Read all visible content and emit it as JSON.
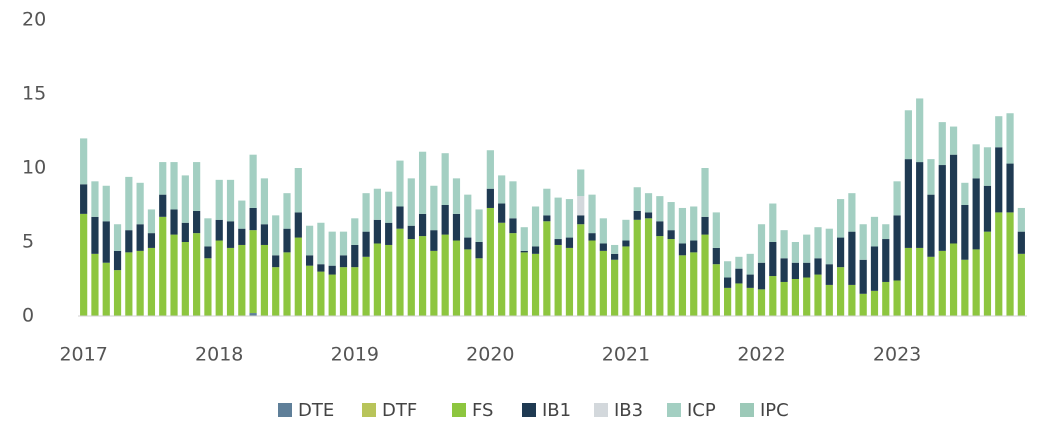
{
  "chart_data": {
    "type": "stacked_bar",
    "categories": [
      "2017",
      null,
      null,
      null,
      null,
      null,
      null,
      null,
      null,
      null,
      null,
      null,
      "2018",
      null,
      null,
      null,
      null,
      null,
      null,
      null,
      null,
      null,
      null,
      null,
      "2019",
      null,
      null,
      null,
      null,
      null,
      null,
      null,
      null,
      null,
      null,
      null,
      "2020",
      null,
      null,
      null,
      null,
      null,
      null,
      null,
      null,
      null,
      null,
      null,
      "2021",
      null,
      null,
      null,
      null,
      null,
      null,
      null,
      null,
      null,
      null,
      null,
      "2022",
      null,
      null,
      null,
      null,
      null,
      null,
      null,
      null,
      null,
      null,
      null,
      "2023",
      null,
      null,
      null,
      null,
      null,
      null,
      null,
      null,
      null,
      null,
      null
    ],
    "series": [
      {
        "name": "DTE",
        "color": "#5f7f99",
        "values": [
          0,
          0,
          0,
          0,
          0,
          0,
          0,
          0,
          0,
          0,
          0,
          0,
          0,
          0,
          0,
          0.2,
          0,
          0,
          0,
          0,
          0,
          0,
          0,
          0,
          0,
          0,
          0,
          0,
          0,
          0,
          0,
          0,
          0,
          0,
          0,
          0,
          0,
          0,
          0,
          0,
          0,
          0,
          0,
          0,
          0,
          0,
          0,
          0,
          0,
          0,
          0,
          0,
          0,
          0,
          0,
          0,
          0,
          0,
          0,
          0,
          0,
          0,
          0,
          0,
          0,
          0,
          0,
          0,
          0,
          0,
          0,
          0,
          0,
          0,
          0,
          0,
          0,
          0,
          0,
          0,
          0,
          0,
          0,
          0
        ]
      },
      {
        "name": "DTF",
        "color": "#b8c45a",
        "values": [
          0,
          0,
          0,
          0,
          0,
          0,
          0,
          0,
          0,
          0,
          0,
          0,
          0,
          0,
          0,
          0,
          0,
          0,
          0,
          0,
          0,
          0,
          0,
          0,
          0,
          0,
          0,
          0,
          0,
          0,
          0,
          0,
          0,
          0,
          0,
          0,
          0,
          0,
          0,
          0,
          0,
          0,
          0,
          0,
          0,
          0,
          0,
          0,
          0,
          0,
          0,
          0,
          0,
          0,
          0,
          0,
          0,
          0,
          0,
          0,
          0,
          0,
          0,
          0,
          0,
          0,
          0,
          0,
          0,
          0,
          0,
          0,
          0,
          0,
          0,
          0,
          0,
          0,
          0,
          0,
          0,
          0,
          0,
          0
        ]
      },
      {
        "name": "FS",
        "color": "#8dc63f",
        "values": [
          6.9,
          4.2,
          3.6,
          3.1,
          4.3,
          4.4,
          4.6,
          6.7,
          5.5,
          5.0,
          5.6,
          3.9,
          5.1,
          4.6,
          4.8,
          5.6,
          4.8,
          3.3,
          4.3,
          5.3,
          3.4,
          3.0,
          2.8,
          3.3,
          3.3,
          4.0,
          4.9,
          4.8,
          5.9,
          5.2,
          5.4,
          4.4,
          5.5,
          5.1,
          4.5,
          3.9,
          7.3,
          6.3,
          5.6,
          4.3,
          4.2,
          6.4,
          4.8,
          4.6,
          6.2,
          5.1,
          4.4,
          3.8,
          4.7,
          6.5,
          6.6,
          5.4,
          5.2,
          4.1,
          4.3,
          5.5,
          3.5,
          1.9,
          2.2,
          1.9,
          1.8,
          2.7,
          2.3,
          2.5,
          2.6,
          2.8,
          2.1,
          3.3,
          2.1,
          1.5,
          1.7,
          2.3,
          2.4,
          4.6,
          4.6,
          4.0,
          4.4,
          4.9,
          3.8,
          4.5,
          5.7,
          7.0,
          7.0,
          4.2
        ]
      },
      {
        "name": "IB1",
        "color": "#1f3a52",
        "values": [
          2.0,
          2.5,
          2.8,
          1.3,
          1.5,
          1.8,
          1.0,
          1.5,
          1.7,
          1.3,
          1.5,
          0.8,
          1.4,
          1.8,
          1.1,
          1.5,
          1.4,
          0.8,
          1.6,
          1.7,
          0.7,
          0.5,
          0.6,
          0.8,
          1.5,
          1.7,
          1.6,
          1.5,
          1.5,
          0.9,
          1.5,
          1.4,
          2.0,
          1.8,
          0.8,
          1.1,
          1.3,
          1.3,
          1.0,
          0.1,
          0.5,
          0.4,
          0.4,
          0.7,
          0.6,
          0.5,
          0.5,
          0.4,
          0.4,
          0.6,
          0.4,
          1.0,
          0.6,
          0.8,
          0.8,
          1.2,
          1.1,
          0.7,
          1.0,
          0.9,
          1.8,
          2.3,
          1.6,
          1.1,
          1.0,
          1.1,
          1.4,
          2.0,
          3.6,
          2.3,
          3.0,
          2.9,
          4.4,
          6.0,
          5.8,
          4.2,
          5.8,
          6.0,
          3.7,
          4.8,
          3.1,
          4.4,
          3.3,
          1.5
        ]
      },
      {
        "name": "IB3",
        "color": "#d3d8dc",
        "values": [
          0,
          0,
          0,
          0,
          0,
          0,
          0,
          0,
          0,
          0,
          0,
          0,
          0,
          0,
          0,
          0,
          0,
          0,
          0,
          0,
          0,
          0,
          0,
          0,
          0,
          0,
          0,
          0,
          0,
          0,
          0,
          0,
          0,
          0,
          0,
          0,
          0,
          0,
          0,
          0,
          0,
          0,
          0,
          0,
          1.3,
          0,
          0,
          0,
          0,
          0,
          0,
          0,
          0,
          0,
          0,
          0,
          0,
          0,
          0,
          0,
          0,
          0,
          0,
          0,
          0,
          0,
          0,
          0,
          0,
          0,
          0,
          0,
          0,
          0,
          0,
          0,
          0,
          0,
          0,
          0,
          0,
          0,
          0,
          0
        ]
      },
      {
        "name": "ICP",
        "color": "#a3cfc2",
        "values": [
          3.1,
          2.4,
          2.4,
          1.8,
          3.6,
          2.8,
          1.6,
          2.2,
          3.2,
          3.2,
          3.3,
          1.9,
          2.7,
          2.8,
          1.9,
          3.6,
          3.1,
          2.7,
          2.4,
          3.0,
          2.0,
          2.8,
          2.3,
          1.6,
          1.8,
          2.6,
          2.1,
          2.1,
          3.1,
          3.2,
          4.2,
          3.0,
          3.5,
          2.4,
          2.9,
          2.2,
          2.6,
          1.9,
          2.5,
          1.6,
          2.7,
          1.8,
          2.8,
          2.6,
          1.8,
          2.6,
          1.7,
          0.6,
          1.4,
          1.6,
          1.3,
          1.7,
          1.9,
          2.4,
          2.3,
          3.3,
          2.4,
          1.1,
          0.8,
          1.4,
          2.6,
          2.6,
          1.9,
          1.4,
          1.9,
          2.1,
          2.4,
          2.6,
          2.6,
          2.4,
          2.0,
          1.0,
          2.3,
          3.3,
          4.3,
          2.4,
          2.9,
          1.9,
          1.5,
          2.3,
          2.6,
          2.1,
          3.4,
          1.6
        ]
      },
      {
        "name": "IPC",
        "color": "#9cc9b8",
        "values": [
          0,
          0,
          0,
          0,
          0,
          0,
          0,
          0,
          0,
          0,
          0,
          0,
          0,
          0,
          0,
          0,
          0,
          0,
          0,
          0,
          0,
          0,
          0,
          0,
          0,
          0,
          0,
          0,
          0,
          0,
          0,
          0,
          0,
          0,
          0,
          0,
          0,
          0,
          0,
          0,
          0,
          0,
          0,
          0,
          0,
          0,
          0,
          0,
          0,
          0,
          0,
          0,
          0,
          0,
          0,
          0,
          0,
          0,
          0,
          0,
          0,
          0,
          0,
          0,
          0,
          0,
          0,
          0,
          0,
          0,
          0,
          0,
          0,
          0,
          0,
          0,
          0,
          0,
          0,
          0,
          0,
          0,
          0,
          0
        ]
      }
    ],
    "ylim": [
      0,
      20
    ],
    "yticks": [
      0,
      5,
      10,
      15,
      20
    ],
    "grid": false,
    "legend": "bottom"
  }
}
